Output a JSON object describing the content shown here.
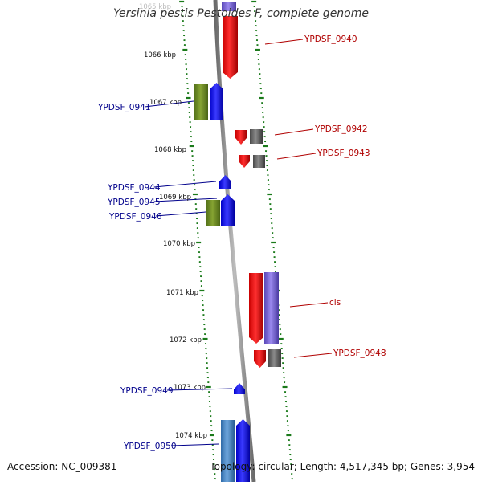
{
  "title": "Yersinia pestis Pestoides F, complete genome",
  "footer": {
    "accession": "Accession: NC_009381",
    "summary": "Topology: circular; Length: 4,517,345 bp; Genes: 3,954"
  },
  "kbp_labels": [
    "1065 kbp",
    "1066 kbp",
    "1067 kbp",
    "1068 kbp",
    "1069 kbp",
    "1070 kbp",
    "1071 kbp",
    "1072 kbp",
    "1073 kbp",
    "1074 kbp"
  ],
  "genes_left": [
    "YPDSF_0941",
    "YPDSF_0944",
    "YPDSF_0945",
    "YPDSF_0946",
    "YPDSF_0949",
    "YPDSF_0950"
  ],
  "genes_right": [
    "YPDSF_0940",
    "YPDSF_0942",
    "YPDSF_0943",
    "cls",
    "YPDSF_0948"
  ],
  "colors": {
    "forward_cds": "#1414ff",
    "reverse_cds": "#ff1414",
    "forward_class": "#6b8c1e",
    "reverse_class": "#666666",
    "lavender_class": "#7b68d8",
    "steel_class": "#4a86c5",
    "backbone": "#999999",
    "tick": "#1a7a1a",
    "left_label": "#00008b",
    "right_label": "#b00000"
  }
}
